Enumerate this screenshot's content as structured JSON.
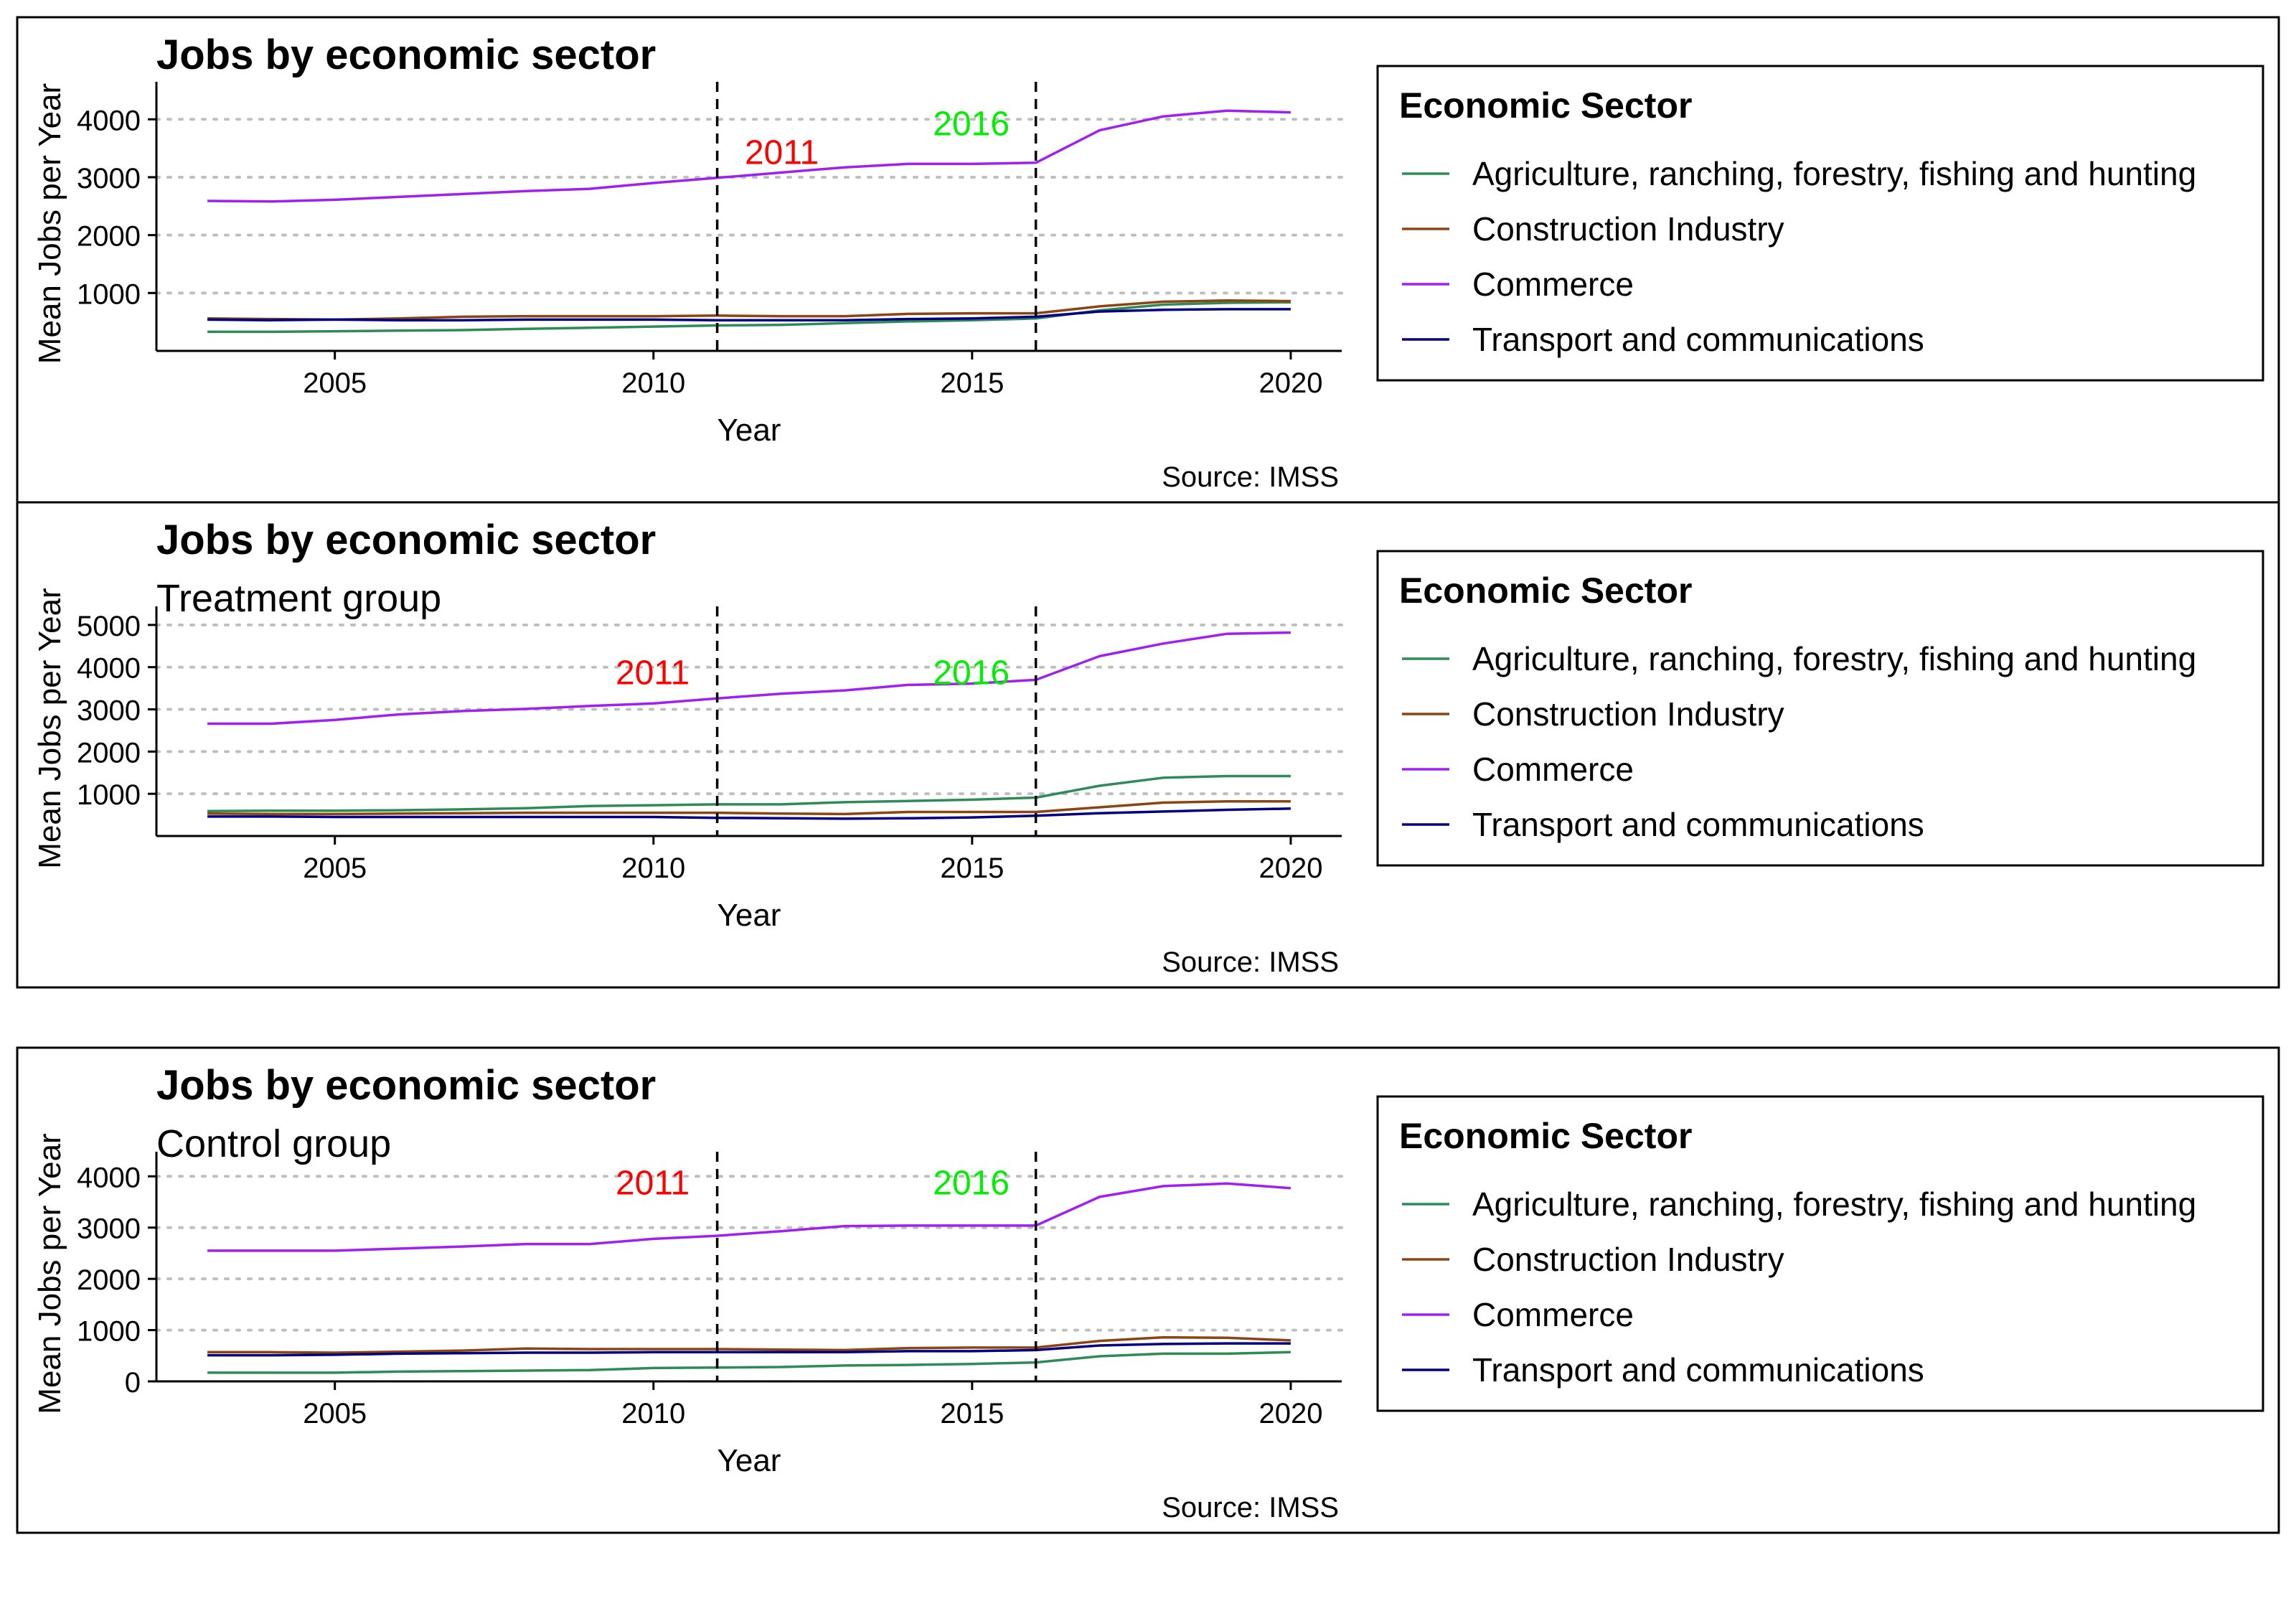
{
  "chart_data": [
    {
      "type": "line",
      "title": "Jobs by economic sector",
      "subtitle": "",
      "xlabel": "Year",
      "ylabel": "Mean Jobs per Year",
      "caption": "Source: IMSS",
      "xlim": [
        2002.2,
        2020.8
      ],
      "ylim": [
        0,
        4400
      ],
      "xticks": [
        2005,
        2010,
        2015,
        2020
      ],
      "yticks": [
        1000,
        2000,
        3000,
        4000
      ],
      "grid": "horizontal-dotted",
      "legend": {
        "title": "Economic Sector",
        "position": "right"
      },
      "x": [
        2003,
        2004,
        2005,
        2006,
        2007,
        2008,
        2009,
        2010,
        2011,
        2012,
        2013,
        2014,
        2015,
        2016,
        2017,
        2018,
        2019,
        2020
      ],
      "series": [
        {
          "name": "Agriculture, ranching, forestry, fishing and hunting",
          "color": "#2e8b57",
          "values": [
            330,
            330,
            340,
            350,
            360,
            380,
            400,
            420,
            440,
            450,
            480,
            510,
            530,
            560,
            700,
            800,
            830,
            840
          ]
        },
        {
          "name": "Construction Industry",
          "color": "#8b4513",
          "values": [
            560,
            550,
            540,
            560,
            590,
            600,
            600,
            600,
            610,
            600,
            600,
            640,
            650,
            650,
            770,
            850,
            870,
            860
          ]
        },
        {
          "name": "Commerce",
          "color": "#a020f0",
          "values": [
            2590,
            2580,
            2610,
            2660,
            2710,
            2760,
            2800,
            2900,
            2990,
            3080,
            3170,
            3230,
            3230,
            3250,
            3810,
            4050,
            4150,
            4120
          ]
        },
        {
          "name": "Transport and communications",
          "color": "#000080",
          "values": [
            540,
            530,
            540,
            530,
            530,
            540,
            540,
            540,
            530,
            530,
            530,
            550,
            560,
            590,
            680,
            710,
            720,
            720
          ]
        }
      ],
      "vlines": [
        {
          "x": 2011,
          "label": "2011",
          "color": "#ff0000",
          "label_y": 3450
        },
        {
          "x": 2016,
          "label": "2016",
          "color": "#00ee00",
          "label_y": 3950
        }
      ]
    },
    {
      "type": "line",
      "title": "Jobs by economic sector",
      "subtitle": "Treatment group",
      "xlabel": "Year",
      "ylabel": "Mean Jobs per Year",
      "caption": "Source: IMSS",
      "xlim": [
        2002.2,
        2020.8
      ],
      "ylim": [
        0,
        5100
      ],
      "xticks": [
        2005,
        2010,
        2015,
        2020
      ],
      "yticks": [
        1000,
        2000,
        3000,
        4000,
        5000
      ],
      "grid": "horizontal-dotted",
      "legend": {
        "title": "Economic Sector",
        "position": "right"
      },
      "x": [
        2003,
        2004,
        2005,
        2006,
        2007,
        2008,
        2009,
        2010,
        2011,
        2012,
        2013,
        2014,
        2015,
        2016,
        2017,
        2018,
        2019,
        2020
      ],
      "series": [
        {
          "name": "Agriculture, ranching, forestry, fishing and hunting",
          "color": "#2e8b57",
          "values": [
            590,
            600,
            600,
            610,
            630,
            660,
            710,
            730,
            750,
            750,
            800,
            830,
            860,
            910,
            1190,
            1380,
            1420,
            1420
          ]
        },
        {
          "name": "Construction Industry",
          "color": "#8b4513",
          "values": [
            530,
            520,
            520,
            530,
            540,
            550,
            550,
            550,
            550,
            530,
            520,
            570,
            570,
            570,
            680,
            790,
            820,
            820
          ]
        },
        {
          "name": "Commerce",
          "color": "#a020f0",
          "values": [
            2660,
            2660,
            2750,
            2880,
            2960,
            3010,
            3080,
            3140,
            3260,
            3370,
            3450,
            3580,
            3610,
            3700,
            4260,
            4560,
            4790,
            4820
          ]
        },
        {
          "name": "Transport and communications",
          "color": "#000080",
          "values": [
            460,
            460,
            450,
            450,
            450,
            450,
            450,
            450,
            430,
            420,
            410,
            420,
            440,
            480,
            540,
            580,
            620,
            650
          ]
        }
      ],
      "vlines": [
        {
          "x": 2011,
          "label": "2011",
          "color": "#ff0000",
          "label_y": 3900
        },
        {
          "x": 2016,
          "label": "2016",
          "color": "#00ee00",
          "label_y": 3900
        }
      ]
    },
    {
      "type": "line",
      "title": "Jobs by economic sector",
      "subtitle": "Control group",
      "xlabel": "Year",
      "ylabel": "Mean Jobs per Year",
      "caption": "Source: IMSS",
      "xlim": [
        2002.2,
        2020.8
      ],
      "ylim": [
        0,
        4200
      ],
      "xticks": [
        2005,
        2010,
        2015,
        2020
      ],
      "yticks": [
        0,
        1000,
        2000,
        3000,
        4000
      ],
      "grid": "horizontal-dotted",
      "legend": {
        "title": "Economic Sector",
        "position": "right"
      },
      "x": [
        2003,
        2004,
        2005,
        2006,
        2007,
        2008,
        2009,
        2010,
        2011,
        2012,
        2013,
        2014,
        2015,
        2016,
        2017,
        2018,
        2019,
        2020
      ],
      "series": [
        {
          "name": "Agriculture, ranching, forestry, fishing and hunting",
          "color": "#2e8b57",
          "values": [
            170,
            170,
            170,
            190,
            200,
            210,
            220,
            260,
            270,
            280,
            310,
            320,
            340,
            370,
            490,
            540,
            540,
            570
          ]
        },
        {
          "name": "Construction Industry",
          "color": "#8b4513",
          "values": [
            570,
            570,
            560,
            580,
            600,
            640,
            630,
            630,
            630,
            620,
            610,
            650,
            660,
            660,
            790,
            860,
            850,
            800
          ]
        },
        {
          "name": "Commerce",
          "color": "#a020f0",
          "values": [
            2550,
            2550,
            2550,
            2590,
            2630,
            2680,
            2680,
            2780,
            2840,
            2930,
            3030,
            3040,
            3040,
            3040,
            3600,
            3810,
            3860,
            3770
          ]
        },
        {
          "name": "Transport and communications",
          "color": "#000080",
          "values": [
            510,
            510,
            520,
            540,
            550,
            560,
            560,
            570,
            570,
            570,
            570,
            590,
            590,
            610,
            700,
            730,
            740,
            740
          ]
        }
      ],
      "vlines": [
        {
          "x": 2011,
          "label": "2011",
          "color": "#ff0000",
          "label_y": 3900
        },
        {
          "x": 2016,
          "label": "2016",
          "color": "#00ee00",
          "label_y": 3900
        }
      ]
    }
  ]
}
